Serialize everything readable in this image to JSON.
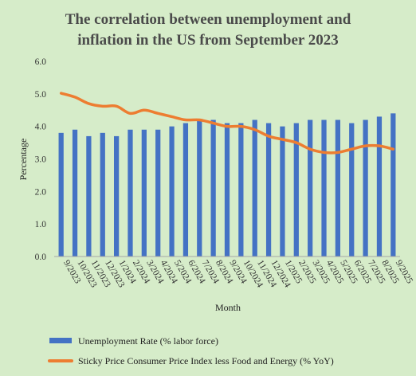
{
  "chart_data": {
    "type": "bar",
    "title_lines": [
      "The correlation between unemployment and",
      "inflation in the US from September 2023"
    ],
    "xlabel": "Month",
    "ylabel": "Percentage",
    "ylim": [
      0,
      6
    ],
    "yticks": [
      "0.0",
      "1.0",
      "2.0",
      "3.0",
      "4.0",
      "5.0",
      "6.0"
    ],
    "grid": false,
    "legend_position": "bottom",
    "categories": [
      "9/2023",
      "10/2023",
      "11/2023",
      "12/2023",
      "1/2024",
      "2/2024",
      "3/2024",
      "4/2024",
      "5/2024",
      "6/2024",
      "7/2024",
      "8/2024",
      "9/2024",
      "10/2024",
      "11/2024",
      "12/2024",
      "1/2025",
      "2/2025",
      "3/2025",
      "4/2025",
      "5/2025",
      "6/2025",
      "7/2025",
      "8/2025",
      "9/2025"
    ],
    "series": [
      {
        "name": "Unemployment Rate (% labor force)",
        "type": "bar",
        "color": "#4472c4",
        "values": [
          3.8,
          3.9,
          3.7,
          3.8,
          3.7,
          3.9,
          3.9,
          3.9,
          4.0,
          4.1,
          4.2,
          4.2,
          4.1,
          4.1,
          4.2,
          4.1,
          4.0,
          4.1,
          4.2,
          4.2,
          4.2,
          4.1,
          4.2,
          4.3,
          4.4
        ]
      },
      {
        "name": "Sticky Price Consumer Price Index less Food and Energy (% YoY)",
        "type": "line",
        "color": "#ed7d31",
        "values": [
          5.02,
          4.9,
          4.7,
          4.62,
          4.62,
          4.4,
          4.5,
          4.4,
          4.3,
          4.2,
          4.2,
          4.1,
          4.0,
          4.0,
          3.9,
          3.7,
          3.6,
          3.5,
          3.3,
          3.2,
          3.2,
          3.3,
          3.4,
          3.4,
          3.3
        ]
      }
    ]
  }
}
